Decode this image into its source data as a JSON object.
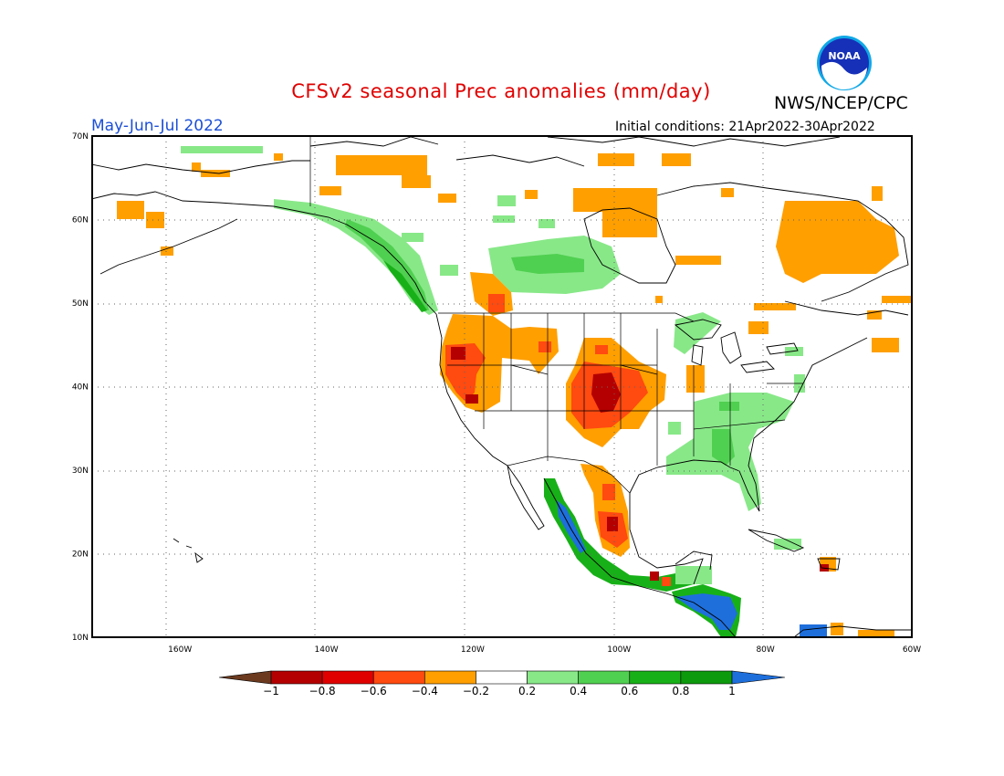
{
  "header": {
    "title": "CFSv2 seasonal Prec anomalies (mm/day)",
    "agency": "NWS/NCEP/CPC",
    "season": "May-Jun-Jul 2022",
    "initial_conditions": "Initial conditions: 21Apr2022-30Apr2022",
    "logo_text": "NOAA"
  },
  "map": {
    "lon_range": [
      -172,
      -60
    ],
    "lat_range": [
      10,
      70
    ],
    "lon_ticks": [
      "160W",
      "140W",
      "120W",
      "100W",
      "80W",
      "60W"
    ],
    "lat_ticks": [
      "70N",
      "60N",
      "50N",
      "40N",
      "30N",
      "20N",
      "10N"
    ],
    "region": "North America"
  },
  "legend": {
    "labels": [
      "-1",
      "-0.8",
      "-0.6",
      "-0.4",
      "-0.2",
      "0.2",
      "0.4",
      "0.6",
      "0.8",
      "1"
    ],
    "colors": [
      "#6b3a1f",
      "#b40000",
      "#e00000",
      "#ff4a10",
      "#ff9f00",
      "#ffffff",
      "#88e888",
      "#50d050",
      "#18b018",
      "#0d9a0d",
      "#1e6fdc"
    ]
  }
}
